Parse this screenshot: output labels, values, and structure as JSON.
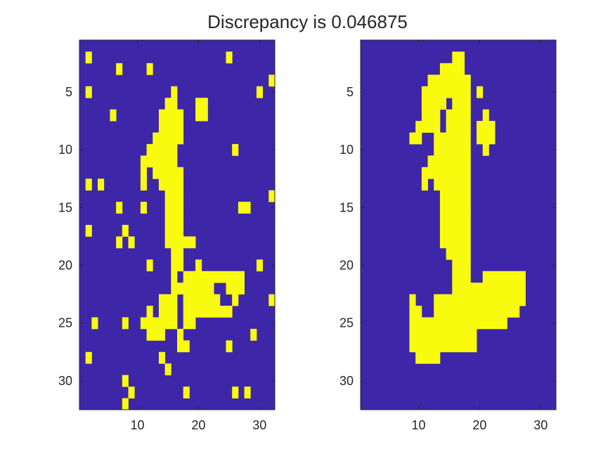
{
  "figure": {
    "title": "Discrepancy is 0.046875"
  },
  "colors": {
    "background": "#ffffff",
    "cell_off": "#3e26a8",
    "cell_on": "#f9fb0e",
    "axis": "#262626"
  },
  "chart_data": [
    {
      "type": "heatmap",
      "name": "noisy-binary-image",
      "rows": 32,
      "cols": 32,
      "xlim": [
        0.5,
        32.5
      ],
      "ylim": [
        0.5,
        32.5
      ],
      "y_reversed": true,
      "xticks": [
        10,
        20,
        30
      ],
      "yticks": [
        5,
        10,
        15,
        20,
        25,
        30
      ],
      "on_runs": [
        [
          2,
          2,
          2
        ],
        [
          2,
          25,
          25
        ],
        [
          3,
          7,
          7
        ],
        [
          3,
          12,
          12
        ],
        [
          4,
          32,
          32
        ],
        [
          5,
          2,
          2
        ],
        [
          5,
          16,
          16
        ],
        [
          5,
          30,
          30
        ],
        [
          6,
          15,
          16
        ],
        [
          6,
          20,
          21
        ],
        [
          7,
          6,
          6
        ],
        [
          7,
          14,
          17
        ],
        [
          7,
          20,
          21
        ],
        [
          8,
          14,
          17
        ],
        [
          9,
          13,
          17
        ],
        [
          10,
          12,
          16
        ],
        [
          10,
          26,
          26
        ],
        [
          11,
          11,
          16
        ],
        [
          12,
          11,
          11
        ],
        [
          12,
          13,
          17
        ],
        [
          13,
          2,
          2
        ],
        [
          13,
          4,
          4
        ],
        [
          13,
          11,
          11
        ],
        [
          13,
          14,
          17
        ],
        [
          14,
          15,
          17
        ],
        [
          14,
          32,
          32
        ],
        [
          15,
          7,
          7
        ],
        [
          15,
          11,
          11
        ],
        [
          15,
          15,
          17
        ],
        [
          15,
          27,
          28
        ],
        [
          16,
          15,
          17
        ],
        [
          17,
          2,
          2
        ],
        [
          17,
          8,
          8
        ],
        [
          17,
          15,
          17
        ],
        [
          18,
          7,
          7
        ],
        [
          18,
          9,
          9
        ],
        [
          18,
          15,
          19
        ],
        [
          19,
          16,
          17
        ],
        [
          20,
          12,
          12
        ],
        [
          20,
          16,
          17
        ],
        [
          20,
          20,
          20
        ],
        [
          20,
          30,
          30
        ],
        [
          21,
          16,
          16
        ],
        [
          21,
          18,
          27
        ],
        [
          22,
          16,
          22
        ],
        [
          22,
          25,
          27
        ],
        [
          23,
          14,
          16
        ],
        [
          23,
          18,
          23
        ],
        [
          23,
          26,
          26
        ],
        [
          23,
          32,
          32
        ],
        [
          24,
          12,
          12
        ],
        [
          24,
          14,
          16
        ],
        [
          24,
          18,
          25
        ],
        [
          25,
          3,
          3
        ],
        [
          25,
          8,
          8
        ],
        [
          25,
          11,
          16
        ],
        [
          25,
          18,
          19
        ],
        [
          26,
          12,
          14
        ],
        [
          26,
          17,
          17
        ],
        [
          26,
          29,
          29
        ],
        [
          27,
          17,
          18
        ],
        [
          27,
          25,
          25
        ],
        [
          28,
          2,
          2
        ],
        [
          28,
          14,
          14
        ],
        [
          29,
          15,
          15
        ],
        [
          30,
          8,
          8
        ],
        [
          31,
          9,
          9
        ],
        [
          31,
          18,
          18
        ],
        [
          31,
          26,
          26
        ],
        [
          31,
          28,
          28
        ],
        [
          32,
          8,
          8
        ]
      ]
    },
    {
      "type": "heatmap",
      "name": "denoised-binary-image",
      "rows": 32,
      "cols": 32,
      "xlim": [
        0.5,
        32.5
      ],
      "ylim": [
        0.5,
        32.5
      ],
      "y_reversed": true,
      "xticks": [
        10,
        20,
        30
      ],
      "yticks": [
        5,
        10,
        15,
        20,
        25,
        30
      ],
      "on_runs": [
        [
          2,
          16,
          17
        ],
        [
          3,
          14,
          17
        ],
        [
          4,
          12,
          18
        ],
        [
          5,
          11,
          18
        ],
        [
          5,
          20,
          20
        ],
        [
          6,
          11,
          14
        ],
        [
          6,
          16,
          18
        ],
        [
          7,
          11,
          13
        ],
        [
          7,
          15,
          18
        ],
        [
          7,
          21,
          21
        ],
        [
          8,
          10,
          13
        ],
        [
          8,
          15,
          18
        ],
        [
          8,
          20,
          22
        ],
        [
          9,
          9,
          10
        ],
        [
          9,
          13,
          18
        ],
        [
          9,
          20,
          22
        ],
        [
          10,
          13,
          18
        ],
        [
          10,
          21,
          21
        ],
        [
          11,
          12,
          18
        ],
        [
          12,
          11,
          18
        ],
        [
          13,
          11,
          11
        ],
        [
          13,
          13,
          18
        ],
        [
          14,
          14,
          18
        ],
        [
          15,
          14,
          18
        ],
        [
          16,
          14,
          18
        ],
        [
          17,
          14,
          18
        ],
        [
          18,
          14,
          18
        ],
        [
          19,
          15,
          18
        ],
        [
          20,
          16,
          18
        ],
        [
          21,
          16,
          18
        ],
        [
          21,
          21,
          27
        ],
        [
          22,
          16,
          27
        ],
        [
          23,
          9,
          9
        ],
        [
          23,
          13,
          27
        ],
        [
          24,
          9,
          10
        ],
        [
          24,
          13,
          26
        ],
        [
          25,
          9,
          24
        ],
        [
          26,
          9,
          19
        ],
        [
          27,
          9,
          19
        ],
        [
          28,
          10,
          13
        ]
      ]
    }
  ]
}
